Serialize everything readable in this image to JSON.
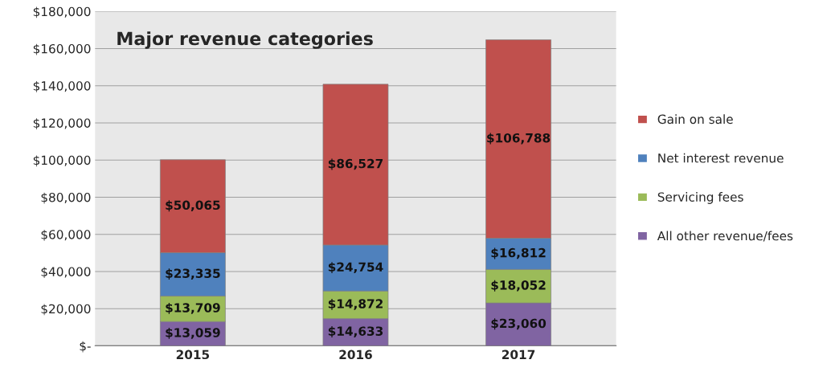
{
  "chart_data": {
    "type": "bar",
    "title": "Major revenue categories",
    "categories": [
      "2015",
      "2016",
      "2017"
    ],
    "stacked": true,
    "series": [
      {
        "name": "All other revenue/fees",
        "color": "#8064a2",
        "values": [
          13059,
          14633,
          23060
        ],
        "value_labels": [
          "$13,059",
          "$14,633",
          "$23,060"
        ]
      },
      {
        "name": "Servicing fees",
        "color": "#9bbb59",
        "values": [
          13709,
          14872,
          18052
        ],
        "value_labels": [
          "$13,709",
          "$14,872",
          "$18,052"
        ]
      },
      {
        "name": "Net interest revenue",
        "color": "#4f81bd",
        "values": [
          23335,
          24754,
          16812
        ],
        "value_labels": [
          "$23,335",
          "$24,754",
          "$16,812"
        ]
      },
      {
        "name": "Gain on sale",
        "color": "#c0504d",
        "values": [
          50065,
          86527,
          106788
        ],
        "value_labels": [
          "$50,065",
          "$86,527",
          "$106,788"
        ]
      }
    ],
    "ylim": [
      0,
      180000
    ],
    "yticks": [
      {
        "value": 0,
        "label": "$-"
      },
      {
        "value": 20000,
        "label": "$20,000"
      },
      {
        "value": 40000,
        "label": "$40,000"
      },
      {
        "value": 60000,
        "label": "$60,000"
      },
      {
        "value": 80000,
        "label": "$80,000"
      },
      {
        "value": 100000,
        "label": "$100,000"
      },
      {
        "value": 120000,
        "label": "$120,000"
      },
      {
        "value": 140000,
        "label": "$140,000"
      },
      {
        "value": 160000,
        "label": "$160,000"
      },
      {
        "value": 180000,
        "label": "$180,000"
      }
    ],
    "grid": "y",
    "legend": "right"
  }
}
